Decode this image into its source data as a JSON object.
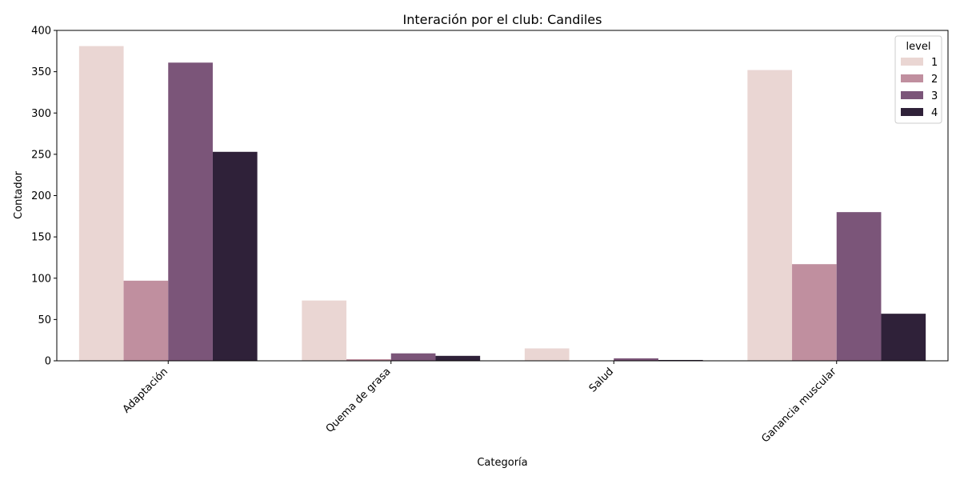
{
  "chart_data": {
    "type": "bar",
    "title": "Interación por el club: Candiles",
    "xlabel": "Categoría",
    "ylabel": "Contador",
    "ylim": [
      0,
      400
    ],
    "yticks": [
      0,
      50,
      100,
      150,
      200,
      250,
      300,
      350,
      400
    ],
    "categories": [
      "Adaptación",
      "Quema de grasa",
      "Salud",
      "Ganancia muscular"
    ],
    "legend": {
      "title": "level",
      "placement": "top-right"
    },
    "grid": false,
    "series": [
      {
        "name": "1",
        "color": "#ead6d3",
        "values": [
          381,
          73,
          15,
          352
        ]
      },
      {
        "name": "2",
        "color": "#c08f9f",
        "values": [
          97,
          2,
          0,
          117
        ]
      },
      {
        "name": "3",
        "color": "#7b5579",
        "values": [
          361,
          9,
          3,
          180
        ]
      },
      {
        "name": "4",
        "color": "#2f2139",
        "values": [
          253,
          6,
          1,
          57
        ]
      }
    ]
  }
}
